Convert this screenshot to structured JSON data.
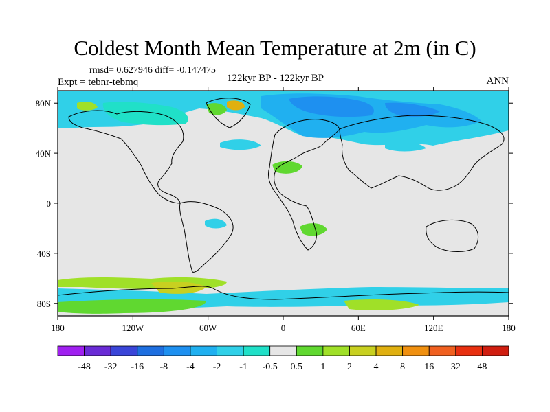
{
  "title": "Coldest Month Mean Temperature at 2m (in C)",
  "stats": "rmsd= 0.627946  diff= -0.147475",
  "expt": "Expt = tebnr-tebmq",
  "period": "122kyr BP - 122kyr BP",
  "season": "ANN",
  "map": {
    "lon_range": [
      -180,
      180
    ],
    "lat_range": [
      -90,
      90
    ],
    "x_ticks": [
      {
        "value": -180,
        "label": "180"
      },
      {
        "value": -120,
        "label": "120W"
      },
      {
        "value": -60,
        "label": "60W"
      },
      {
        "value": 0,
        "label": "0"
      },
      {
        "value": 60,
        "label": "60E"
      },
      {
        "value": 120,
        "label": "120E"
      },
      {
        "value": 180,
        "label": "180"
      }
    ],
    "y_ticks": [
      {
        "value": 80,
        "label": "80N"
      },
      {
        "value": 40,
        "label": "40N"
      },
      {
        "value": 0,
        "label": "0"
      },
      {
        "value": -40,
        "label": "40S"
      },
      {
        "value": -80,
        "label": "80S"
      }
    ],
    "background_color": "#e6e6e6"
  },
  "colorbar": {
    "labels": [
      "-48",
      "-32",
      "-16",
      "-8",
      "-4",
      "-2",
      "-1",
      "-0.5",
      "0.5",
      "1",
      "2",
      "4",
      "8",
      "16",
      "32",
      "48"
    ],
    "colors": [
      "#a020f0",
      "#6a2bd6",
      "#3a45d8",
      "#1e6fe0",
      "#1e90f0",
      "#20b0f0",
      "#30d0e8",
      "#20e0c8",
      "#e6e6e6",
      "#60d830",
      "#a0e028",
      "#c8d020",
      "#e0b010",
      "#f09010",
      "#f06020",
      "#e83010",
      "#d01e10"
    ]
  }
}
